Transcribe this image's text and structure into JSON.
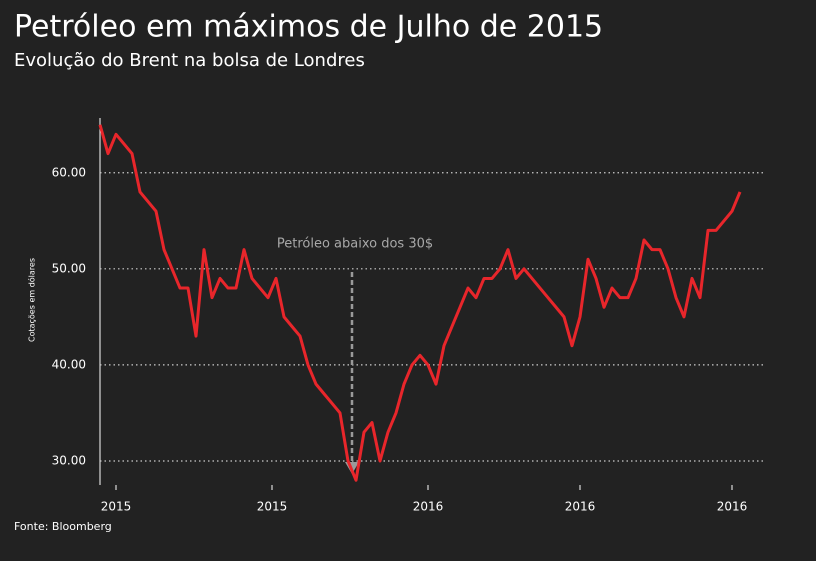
{
  "chart_data": {
    "type": "line",
    "title": "Petróleo em máximos de Julho de 2015",
    "subtitle": "Evolução do Brent na bolsa de Londres",
    "y_label": "Cotações em dólares",
    "source": "Fonte: Bloomberg",
    "annotation": "Petróleo abaixo dos 30$",
    "color": "#e8262b",
    "grid": true,
    "xlim": [
      0,
      80
    ],
    "xticks": [
      {
        "value": 2,
        "label": "2015"
      },
      {
        "value": 21.5,
        "label": "2015"
      },
      {
        "value": 41,
        "label": "2016"
      },
      {
        "value": 60,
        "label": "2016"
      },
      {
        "value": 79,
        "label": "2016"
      }
    ],
    "ylim": [
      27.5,
      65.7
    ],
    "yticks": [
      {
        "value": 30,
        "label": "30.00"
      },
      {
        "value": 40,
        "label": "40.00"
      },
      {
        "value": 50,
        "label": "50.00"
      },
      {
        "value": 60,
        "label": "60.00"
      }
    ],
    "values": [
      65,
      62,
      64,
      63,
      62,
      58,
      57,
      56,
      52,
      50,
      48,
      48,
      43,
      52,
      47,
      49,
      48,
      48,
      52,
      49,
      48,
      47,
      49,
      45,
      44,
      43,
      40,
      38,
      37,
      36,
      35,
      30,
      28,
      33,
      34,
      30,
      33,
      35,
      38,
      40,
      41,
      40,
      38,
      42,
      44,
      46,
      48,
      47,
      49,
      49,
      50,
      52,
      49,
      50,
      49,
      48,
      47,
      46,
      45,
      42,
      45,
      51,
      49,
      46,
      48,
      47,
      47,
      49,
      53,
      52,
      52,
      50,
      47,
      45,
      49,
      47,
      54,
      54,
      55,
      56,
      58
    ]
  }
}
